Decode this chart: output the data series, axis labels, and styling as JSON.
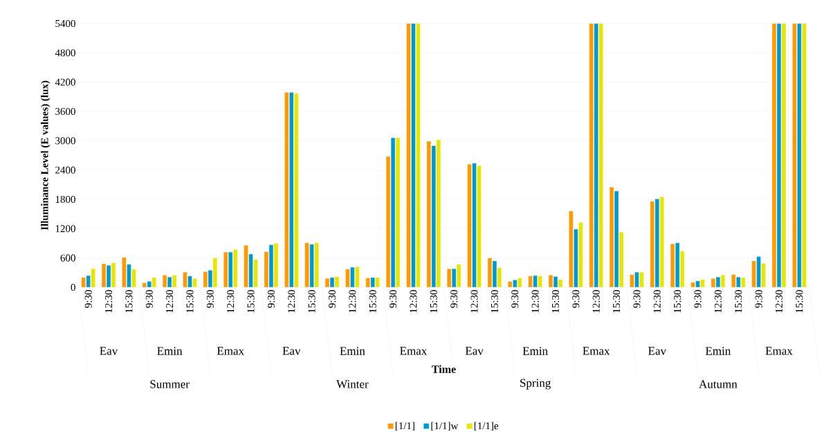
{
  "chart_data": {
    "type": "bar",
    "xlabel": "Time",
    "ylabel": "Illuminance Level (E values) (lux)",
    "categories": [
      "9:30",
      "12:30",
      "15:30",
      "9:30",
      "12:30",
      "15:30",
      "9:30",
      "12:30",
      "15:30",
      "9:30",
      "12:30",
      "15:30",
      "9:30",
      "12:30",
      "15:30",
      "9:30",
      "12:30",
      "15:30",
      "9:30",
      "12:30",
      "15:30",
      "9:30",
      "12:30",
      "15:30",
      "9:30",
      "12:30",
      "15:30",
      "9:30",
      "12:30",
      "15:30",
      "9:30",
      "12:30",
      "15:30",
      "9:30",
      "12:30",
      "15:30"
    ],
    "annotations": [
      "Eav",
      "Emin",
      "Emax",
      "Eav",
      "Emin",
      "Emax",
      "Eav",
      "Emin",
      "Emax",
      "Eav",
      "Emin",
      "Emax",
      "Summer",
      "Winter",
      "Spring",
      "Autumn"
    ],
    "series": [
      {
        "name": "[1/1]",
        "color": "#ff9900",
        "values": [
          200,
          480,
          610,
          90,
          250,
          310,
          320,
          720,
          860,
          730,
          3990,
          910,
          180,
          370,
          190,
          2680,
          5400,
          2990,
          380,
          2520,
          600,
          120,
          230,
          250,
          1560,
          5400,
          2050,
          260,
          1760,
          890,
          100,
          180,
          260,
          540,
          5400,
          5400
        ]
      },
      {
        "name": "[1/1]w",
        "color": "#0099cc",
        "values": [
          240,
          450,
          470,
          120,
          210,
          230,
          350,
          720,
          680,
          870,
          3990,
          880,
          200,
          410,
          200,
          3060,
          5400,
          2900,
          380,
          2540,
          540,
          150,
          240,
          220,
          1190,
          5400,
          1970,
          310,
          1810,
          910,
          130,
          210,
          210,
          630,
          5400,
          5400
        ]
      },
      {
        "name": "[1/1]e",
        "color": "#e6e600",
        "values": [
          380,
          500,
          370,
          200,
          250,
          180,
          600,
          770,
          570,
          900,
          3970,
          910,
          220,
          420,
          200,
          3060,
          5400,
          3020,
          470,
          2490,
          400,
          190,
          230,
          160,
          1330,
          5400,
          1130,
          310,
          1850,
          740,
          160,
          250,
          200,
          490,
          5400,
          5400
        ]
      }
    ],
    "ylim": [
      0,
      5400
    ],
    "yticks": [
      0,
      600,
      1200,
      1800,
      2400,
      3000,
      3600,
      4200,
      4800,
      5400
    ],
    "grid": "y",
    "legend": "bottom"
  }
}
